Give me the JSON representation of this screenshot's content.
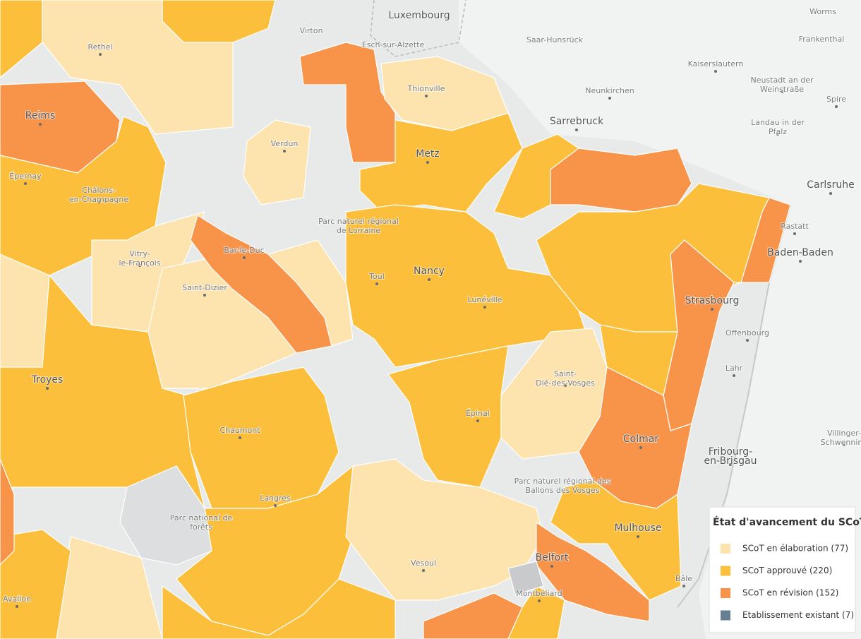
{
  "places": [
    "Luxembourg",
    "Virton",
    "Esch-sur-Alzette",
    "Worms",
    "Frankenthal",
    "Saar-Hunsrück",
    "Kaiserslautern",
    "Rethel",
    "Thionville",
    "Neunkirchen",
    "Neustadt an der Weinstraße",
    "Reims",
    "Spire",
    "Sarrebruck",
    "Landau in der Pfalz",
    "Verdun",
    "Metz",
    "Épernay",
    "Châlons-en-Champagne",
    "Carlsruhe",
    "Parc naturel régional de Lorraine",
    "Rastatt",
    "Bar-le-Duc",
    "Baden-Baden",
    "Vitry-le-François",
    "Nancy",
    "Toul",
    "Saint-Dizier",
    "Lunéville",
    "Strasbourg",
    "Offenbourg",
    "Lahr",
    "Troyes",
    "Saint-Dié-des-Vosges",
    "Épinal",
    "Chaumont",
    "Colmar",
    "Villinger-Schwenning",
    "Fribourg-en-Brisgau",
    "Parc naturel régional des Ballons des Vosges",
    "Langres",
    "Parc national de forêts",
    "Mulhouse",
    "Vesoul",
    "Belfort",
    "Bâle",
    "Montbéliard",
    "Avallon"
  ],
  "legend": {
    "title": "État d'avancement du SCoT",
    "items": [
      {
        "label": "SCoT en élaboration (77)",
        "color": "#fde3ae"
      },
      {
        "label": "SCoT approuvé (220)",
        "color": "#fbbf3b"
      },
      {
        "label": "SCoT en révision (152)",
        "color": "#f8944a"
      },
      {
        "label": "Etablissement existant (7)",
        "color": "#667f93"
      }
    ]
  }
}
